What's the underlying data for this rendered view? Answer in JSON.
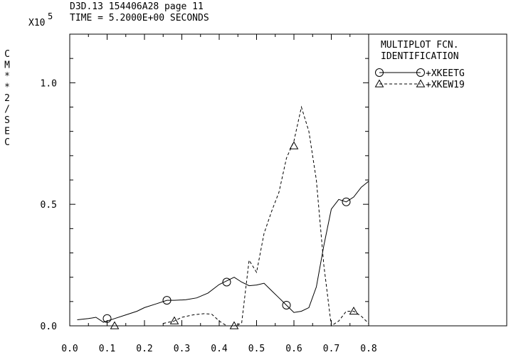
{
  "header": {
    "line1": "D3D.13 154406A28 page 11",
    "line2": "TIME = 5.2000E+00 SECONDS",
    "multiplier_base": "X10",
    "multiplier_exp": "5"
  },
  "legend": {
    "title1": "MULTIPLOT FCN.",
    "title2": "IDENTIFICATION",
    "entries": [
      "+XKEETG",
      "+XKEW19"
    ]
  },
  "chart_data": {
    "type": "line",
    "ylabel": "CM**2/SEC",
    "xlim": [
      0.0,
      0.8
    ],
    "ylim": [
      0.0,
      1.2
    ],
    "y_multiplier": 100000,
    "x_ticks": [
      "0.0",
      "0.1",
      "0.2",
      "0.3",
      "0.4",
      "0.5",
      "0.6",
      "0.7",
      "0.8"
    ],
    "y_ticks": [
      "0.0",
      "0.5",
      "1.0"
    ],
    "series": [
      {
        "name": "+XKEETG",
        "style": "solid",
        "marker": "circle",
        "x": [
          0.02,
          0.05,
          0.07,
          0.09,
          0.12,
          0.15,
          0.18,
          0.2,
          0.23,
          0.26,
          0.28,
          0.31,
          0.34,
          0.37,
          0.4,
          0.42,
          0.44,
          0.46,
          0.48,
          0.5,
          0.52,
          0.54,
          0.56,
          0.58,
          0.6,
          0.62,
          0.64,
          0.66,
          0.68,
          0.7,
          0.72,
          0.74,
          0.76,
          0.78,
          0.8
        ],
        "y": [
          0.025,
          0.03,
          0.035,
          0.015,
          0.03,
          0.045,
          0.06,
          0.075,
          0.09,
          0.105,
          0.105,
          0.107,
          0.115,
          0.135,
          0.17,
          0.185,
          0.2,
          0.18,
          0.165,
          0.168,
          0.175,
          0.145,
          0.115,
          0.085,
          0.055,
          0.06,
          0.075,
          0.16,
          0.33,
          0.48,
          0.52,
          0.51,
          0.53,
          0.57,
          0.595
        ],
        "marker_x": [
          0.1,
          0.26,
          0.42,
          0.58,
          0.74
        ],
        "marker_y": [
          0.03,
          0.105,
          0.18,
          0.085,
          0.51
        ]
      },
      {
        "name": "+XKEW19",
        "style": "dashed",
        "marker": "triangle",
        "x": [
          0.25,
          0.28,
          0.3,
          0.33,
          0.36,
          0.38,
          0.4,
          0.42,
          0.44,
          0.46,
          0.48,
          0.5,
          0.52,
          0.54,
          0.56,
          0.58,
          0.6,
          0.62,
          0.64,
          0.66,
          0.68,
          0.7,
          0.72,
          0.74,
          0.76,
          0.78,
          0.8
        ],
        "y": [
          0.01,
          0.02,
          0.035,
          0.045,
          0.05,
          0.048,
          0.02,
          0.0,
          0.0,
          0.01,
          0.27,
          0.22,
          0.38,
          0.47,
          0.55,
          0.69,
          0.76,
          0.9,
          0.8,
          0.6,
          0.25,
          0.0,
          0.02,
          0.06,
          0.06,
          0.04,
          0.01
        ],
        "marker_x": [
          0.12,
          0.28,
          0.44,
          0.6,
          0.76
        ],
        "marker_y": [
          0.0,
          0.02,
          0.0,
          0.74,
          0.06
        ]
      }
    ]
  }
}
